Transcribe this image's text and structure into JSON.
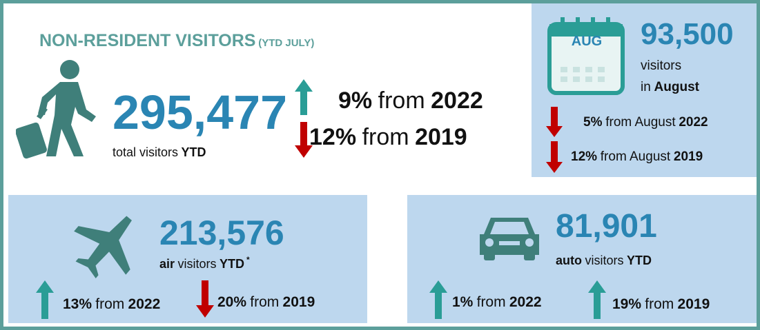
{
  "header": {
    "title": "NON-RESIDENT VISITORS",
    "subtitle": "(YTD JULY)"
  },
  "total": {
    "value": "295,477",
    "label": "total visitors",
    "label_bold": "YTD",
    "changes": [
      {
        "pct": "9%",
        "word": "from",
        "year": "2022"
      },
      {
        "pct": "12%",
        "word": "from",
        "year": "2019"
      }
    ]
  },
  "august": {
    "calendar": "AUG",
    "value": "93,500",
    "line1": "visitors",
    "line2": "in",
    "line2_bold": "August",
    "changes": [
      {
        "pct": "5%",
        "word": "from August",
        "year": "2022"
      },
      {
        "pct": "12%",
        "word": "from August",
        "year": "2019"
      }
    ]
  },
  "air": {
    "value": "213,576",
    "label_bold": "air",
    "label": "visitors",
    "label_bold2": "YTD",
    "footnote": "*",
    "changes": [
      {
        "pct": "13%",
        "word": "from",
        "year": "2022"
      },
      {
        "pct": "20%",
        "word": "from",
        "year": "2019"
      }
    ]
  },
  "auto": {
    "value": "81,901",
    "label_bold": "auto",
    "label": "visitors",
    "label_bold2": "YTD",
    "changes": [
      {
        "pct": "1%",
        "word": "from",
        "year": "2022"
      },
      {
        "pct": "19%",
        "word": "from",
        "year": "2019"
      }
    ]
  }
}
